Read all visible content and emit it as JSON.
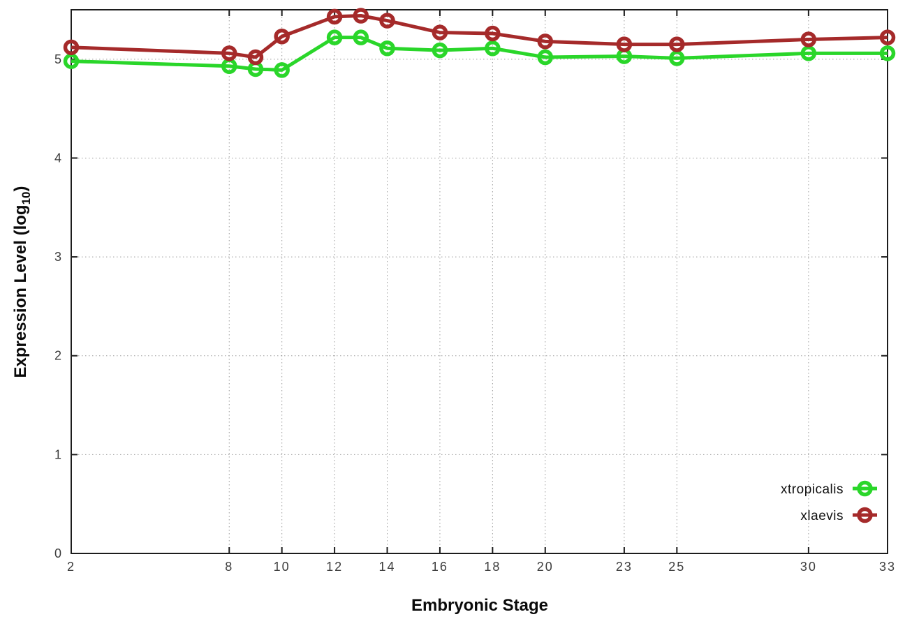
{
  "figure": {
    "xlabel": "Embryonic Stage",
    "ylabel_pre": "Expression Level (log",
    "ylabel_sub": "10",
    "ylabel_post": ")"
  },
  "chart_data": {
    "type": "line",
    "title": "",
    "xlabel": "Embryonic Stage",
    "ylabel": "Expression Level (log10)",
    "x": [
      2,
      8,
      9,
      10,
      12,
      13,
      14,
      16,
      18,
      20,
      23,
      25,
      30,
      33
    ],
    "series": [
      {
        "name": "xtropicalis",
        "color": "#2ad62a",
        "marker": "open-circle",
        "values": [
          4.98,
          4.93,
          4.9,
          4.89,
          5.22,
          5.22,
          5.11,
          5.09,
          5.11,
          5.02,
          5.03,
          5.01,
          5.06,
          5.06
        ]
      },
      {
        "name": "xlaevis",
        "color": "#a52a2a",
        "marker": "open-circle",
        "values": [
          5.12,
          5.06,
          5.02,
          5.23,
          5.43,
          5.44,
          5.39,
          5.27,
          5.26,
          5.18,
          5.15,
          5.15,
          5.2,
          5.22
        ]
      }
    ],
    "xticks": [
      2,
      8,
      10,
      12,
      14,
      16,
      18,
      20,
      23,
      25,
      30,
      33
    ],
    "yticks": [
      0,
      1,
      2,
      3,
      4,
      5
    ],
    "xlim": [
      2,
      33
    ],
    "ylim": [
      0,
      5.5
    ],
    "grid": true,
    "grid_style": "dotted",
    "legend_position": "inside-bottom-right",
    "colors": {
      "axis": "#1c1c1c",
      "grid": "#9a9a9a",
      "tick_text": "#3d3d3d"
    }
  }
}
